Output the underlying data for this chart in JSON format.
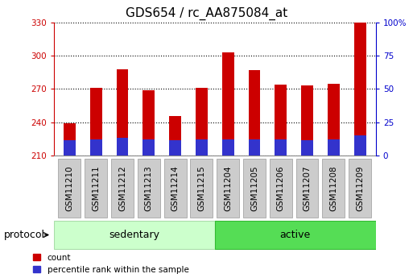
{
  "title": "GDS654 / rc_AA875084_at",
  "samples": [
    "GSM11210",
    "GSM11211",
    "GSM11212",
    "GSM11213",
    "GSM11214",
    "GSM11215",
    "GSM11204",
    "GSM11205",
    "GSM11206",
    "GSM11207",
    "GSM11208",
    "GSM11209"
  ],
  "red_values": [
    239,
    271,
    288,
    269,
    246,
    271,
    303,
    287,
    274,
    273,
    275,
    330
  ],
  "blue_values": [
    224,
    225,
    226,
    225,
    224,
    225,
    225,
    225,
    225,
    224,
    225,
    228
  ],
  "y_min": 210,
  "y_max": 330,
  "y_ticks": [
    210,
    240,
    270,
    300,
    330
  ],
  "right_y_ticks_labels": [
    "0",
    "25",
    "50",
    "75",
    "100%"
  ],
  "right_y_tick_positions": [
    210,
    240,
    270,
    300,
    330
  ],
  "groups": [
    {
      "label": "sedentary",
      "start": 0,
      "end": 6,
      "color": "#ccffcc",
      "edge": "#aaddaa"
    },
    {
      "label": "active",
      "start": 6,
      "end": 12,
      "color": "#55dd55",
      "edge": "#33bb33"
    }
  ],
  "protocol_label": "protocol",
  "legend_count": "count",
  "legend_percentile": "percentile rank within the sample",
  "bar_color_red": "#cc0000",
  "bar_color_blue": "#3333cc",
  "bar_width": 0.45,
  "title_fontsize": 11,
  "tick_fontsize": 7.5,
  "label_fontsize": 9,
  "background_color": "#ffffff",
  "grid_color": "#000000",
  "left_axis_color": "#cc0000",
  "right_axis_color": "#0000cc",
  "xtick_box_color": "#cccccc",
  "xtick_box_edge": "#999999"
}
